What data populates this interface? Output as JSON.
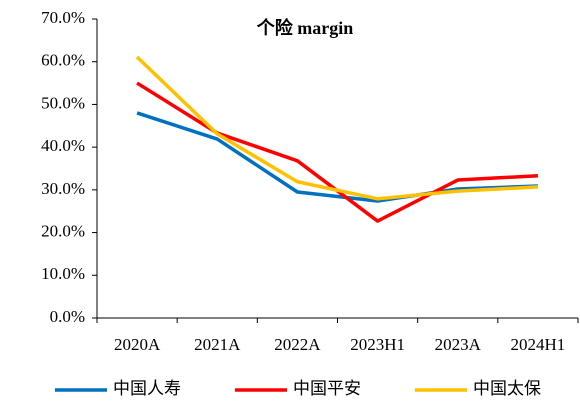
{
  "chart_data": {
    "type": "line",
    "title": "个险 margin",
    "categories": [
      "2020A",
      "2021A",
      "2022A",
      "2023H1",
      "2023A",
      "2024H1"
    ],
    "series": [
      {
        "name": "中国人寿",
        "color": "#0070c0",
        "values": [
          48.0,
          41.9,
          29.5,
          27.4,
          30.2,
          30.9
        ]
      },
      {
        "name": "中国平安",
        "color": "#ff0000",
        "values": [
          55.0,
          43.3,
          36.8,
          22.7,
          32.3,
          33.3
        ]
      },
      {
        "name": "中国太保",
        "color": "#ffc000",
        "values": [
          61.1,
          43.1,
          31.9,
          27.9,
          29.7,
          30.7
        ]
      }
    ],
    "ylim": [
      0,
      70
    ],
    "yticks": [
      {
        "value": 0,
        "label": "0.0%"
      },
      {
        "value": 10,
        "label": "10.0%"
      },
      {
        "value": 20,
        "label": "20.0%"
      },
      {
        "value": 30,
        "label": "30.0%"
      },
      {
        "value": 40,
        "label": "40.0%"
      },
      {
        "value": 50,
        "label": "50.0%"
      },
      {
        "value": 60,
        "label": "60.0%"
      },
      {
        "value": 70,
        "label": "70.0%"
      }
    ],
    "legend": "bottom"
  }
}
